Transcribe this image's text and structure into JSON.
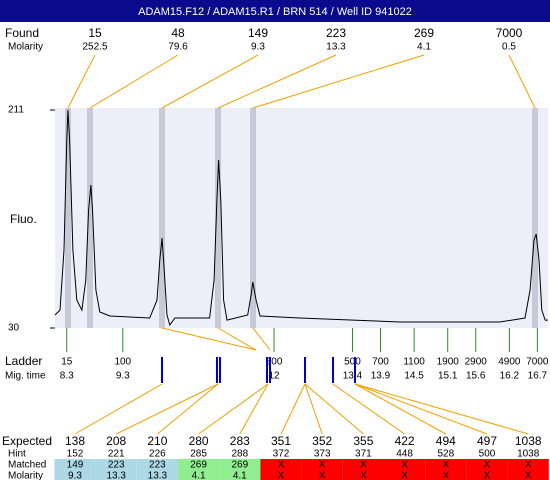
{
  "header": {
    "title": "ADAM15.F12 / ADAM15.R1 / BRN 514 / Well ID 941022"
  },
  "found": {
    "label": "Found",
    "sizes": [
      15,
      48,
      149,
      223,
      269,
      7000
    ],
    "molarity_label": "Molarity",
    "molarity": [
      252.5,
      79.6,
      9.3,
      13.3,
      4.1,
      0.5
    ]
  },
  "trace": {
    "type": "line",
    "ylabel": "Fluo.",
    "color": "#000000",
    "x": [
      8.09,
      8.18,
      8.25,
      8.3,
      8.32,
      8.35,
      8.41,
      8.48,
      8.57,
      8.64,
      8.69,
      8.73,
      8.76,
      8.82,
      8.89,
      9.07,
      9.78,
      9.91,
      9.96,
      10.0,
      10.03,
      10.09,
      10.14,
      10.23,
      10.85,
      10.93,
      10.98,
      11.01,
      11.05,
      11.1,
      11.16,
      11.53,
      11.59,
      11.62,
      11.68,
      11.75,
      12.46,
      14.25,
      16.03,
      16.48,
      16.57,
      16.64,
      16.68,
      16.73,
      16.78,
      16.84,
      16.89
    ],
    "values": [
      40.8,
      44.9,
      94.8,
      186.1,
      211,
      186.1,
      94.8,
      53.2,
      44.9,
      69.9,
      128.0,
      148.7,
      128.0,
      61.6,
      43.3,
      40.0,
      38.3,
      53.2,
      86.5,
      104.7,
      84.8,
      40.8,
      32.5,
      38.3,
      38.3,
      69.9,
      136.3,
      169.5,
      136.3,
      53.2,
      36.6,
      40.8,
      57.4,
      68.2,
      53.2,
      40.0,
      38.3,
      35.0,
      35.0,
      38.3,
      61.6,
      103.1,
      108.0,
      86.5,
      44.9,
      36.6,
      36.6
    ],
    "xlim": [
      8.09,
      16.89
    ],
    "ylim": [
      30,
      211
    ],
    "yticks": [
      211,
      30
    ]
  },
  "ladder": {
    "label": "Ladder",
    "sizes": [
      15,
      100,
      300,
      500,
      700,
      1100,
      1900,
      2900,
      4900,
      7000
    ],
    "time_label": "Mig. time",
    "times": [
      8.3,
      9.3,
      12,
      13.4,
      13.9,
      14.5,
      15.1,
      15.6,
      16.2,
      16.7
    ]
  },
  "table": {
    "labels": [
      "Expected",
      "Hint",
      "Matched",
      "Molarity"
    ],
    "expected": [
      138,
      208,
      210,
      280,
      283,
      351,
      352,
      355,
      422,
      494,
      497,
      1038
    ],
    "hint": [
      152,
      221,
      226,
      285,
      288,
      372,
      373,
      371,
      448,
      528,
      500,
      1038
    ],
    "matched": [
      149,
      223,
      223,
      269,
      269,
      "X",
      "X",
      "X",
      "X",
      "X",
      "X",
      "X"
    ],
    "molarity": [
      9.3,
      13.3,
      13.3,
      4.1,
      4.1,
      "X",
      "X",
      "X",
      "X",
      "X",
      "X",
      "X"
    ]
  }
}
